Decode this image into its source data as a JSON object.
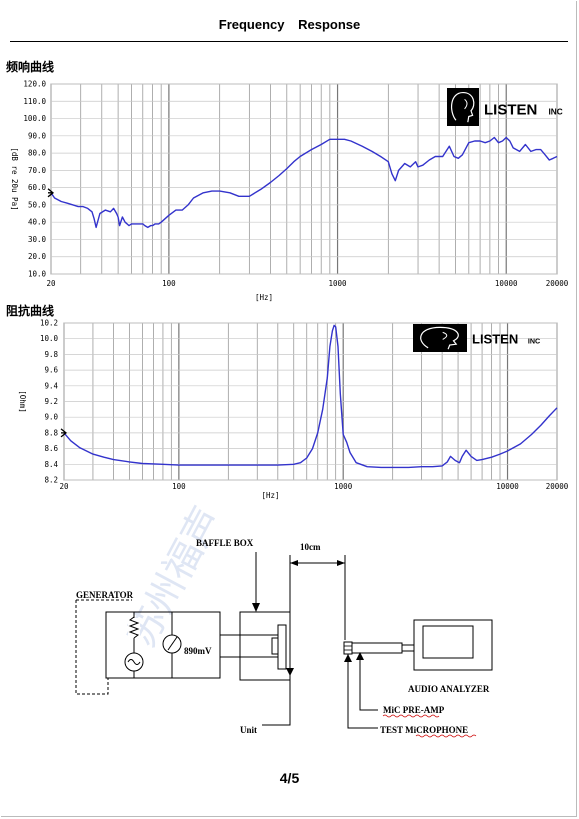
{
  "header": {
    "title": "Frequency    Response"
  },
  "chart_data": [
    {
      "id": "frequency-response",
      "type": "line",
      "section_label": "频响曲线",
      "xscale": "log",
      "xlim": [
        20,
        20000
      ],
      "ylim": [
        10,
        120
      ],
      "xlabel": "[Hz]",
      "ylabel": "[dB re 20u Pa]",
      "x_ticks": [
        "20",
        "100",
        "1000",
        "10000",
        "20000"
      ],
      "y_ticks": [
        "10.0",
        "20.0",
        "30.0",
        "40.0",
        "50.0",
        "60.0",
        "70.0",
        "80.0",
        "90.0",
        "100.0",
        "110.0",
        "120.0"
      ],
      "grid": true,
      "line_color": "#3333cc",
      "series": [
        {
          "x": [
            20,
            21,
            23,
            25,
            27,
            29,
            31,
            33,
            35,
            36,
            37,
            39,
            42,
            45,
            47,
            49,
            50,
            51,
            53,
            55,
            58,
            60,
            63,
            67,
            70,
            72,
            75,
            78,
            80,
            83,
            87,
            90,
            95,
            100,
            110,
            120,
            130,
            140,
            160,
            180,
            200,
            230,
            260,
            300,
            350,
            400,
            450,
            500,
            550,
            600,
            700,
            800,
            900,
            1000,
            1100,
            1200,
            1400,
            1600,
            1800,
            2000,
            2100,
            2200,
            2300,
            2500,
            2700,
            2900,
            3000,
            3200,
            3500,
            3800,
            4200,
            4600,
            4900,
            5200,
            5500,
            6000,
            6500,
            7000,
            7500,
            8000,
            8500,
            9000,
            9500,
            10000,
            10500,
            11000,
            12000,
            13000,
            14000,
            15000,
            16000,
            17000,
            18000,
            19000,
            20000
          ],
          "y": [
            57,
            54,
            52,
            51,
            50,
            49,
            49,
            48,
            46,
            42,
            37,
            45,
            47,
            46,
            48,
            45,
            43,
            38,
            43,
            40,
            38,
            39,
            39,
            39,
            39,
            38,
            37,
            38,
            38,
            39,
            39,
            40,
            42,
            44,
            47,
            47,
            50,
            54,
            57,
            58,
            58,
            57,
            55,
            55,
            59,
            63,
            67,
            71,
            75,
            78,
            82,
            85,
            88,
            88,
            88,
            87,
            84,
            81,
            78,
            75,
            68,
            64,
            70,
            74,
            72,
            75,
            72,
            73,
            76,
            78,
            78,
            84,
            78,
            77,
            79,
            86,
            87,
            87,
            86,
            87,
            89,
            86,
            87,
            89,
            87,
            83,
            81,
            85,
            81,
            82,
            82,
            79,
            76,
            77,
            78
          ]
        }
      ]
    },
    {
      "id": "impedance",
      "type": "line",
      "section_label": "阻抗曲线",
      "xscale": "log",
      "xlim": [
        20,
        20000
      ],
      "ylim": [
        8.2,
        10.2
      ],
      "xlabel": "[Hz]",
      "ylabel": "[Ohm]",
      "x_ticks": [
        "20",
        "100",
        "1000",
        "10000",
        "20000"
      ],
      "y_ticks": [
        "8.2",
        "8.4",
        "8.6",
        "8.8",
        "9.0",
        "9.2",
        "9.4",
        "9.6",
        "9.8",
        "10.0",
        "10.2"
      ],
      "grid": true,
      "line_color": "#3333cc",
      "series": [
        {
          "x": [
            20,
            22,
            25,
            30,
            35,
            40,
            50,
            60,
            80,
            100,
            150,
            200,
            300,
            400,
            500,
            550,
            600,
            650,
            700,
            750,
            800,
            830,
            860,
            880,
            900,
            930,
            960,
            1000,
            1050,
            1100,
            1200,
            1400,
            1700,
            2000,
            2500,
            3000,
            3500,
            4000,
            4300,
            4500,
            4800,
            5100,
            5300,
            5600,
            6000,
            6500,
            7000,
            8000,
            9000,
            10000,
            12000,
            14000,
            16000,
            18000,
            20000
          ],
          "y": [
            8.8,
            8.7,
            8.61,
            8.53,
            8.49,
            8.46,
            8.43,
            8.41,
            8.4,
            8.39,
            8.39,
            8.39,
            8.39,
            8.39,
            8.4,
            8.42,
            8.48,
            8.6,
            8.8,
            9.1,
            9.5,
            9.9,
            10.1,
            10.17,
            10.15,
            9.9,
            9.3,
            8.78,
            8.68,
            8.55,
            8.42,
            8.37,
            8.36,
            8.36,
            8.36,
            8.37,
            8.37,
            8.38,
            8.43,
            8.5,
            8.45,
            8.42,
            8.5,
            8.58,
            8.5,
            8.45,
            8.46,
            8.49,
            8.53,
            8.57,
            8.66,
            8.78,
            8.9,
            9.02,
            9.12
          ]
        }
      ]
    }
  ],
  "logo": {
    "brand": "LISTEN",
    "suffix": "INC"
  },
  "watermark": "苏州福声",
  "diagram": {
    "generator": "GENERATOR",
    "baffle_box": "BAFFLE BOX",
    "distance": "10cm",
    "voltage": "890mV",
    "unit": "Unit",
    "audio_analyzer": "AUDIO ANALYZER",
    "mic_preamp": "MiC PRE-AMP",
    "test_microphone": "TEST MiCROPHONE"
  },
  "footer": {
    "page": "4/5"
  }
}
